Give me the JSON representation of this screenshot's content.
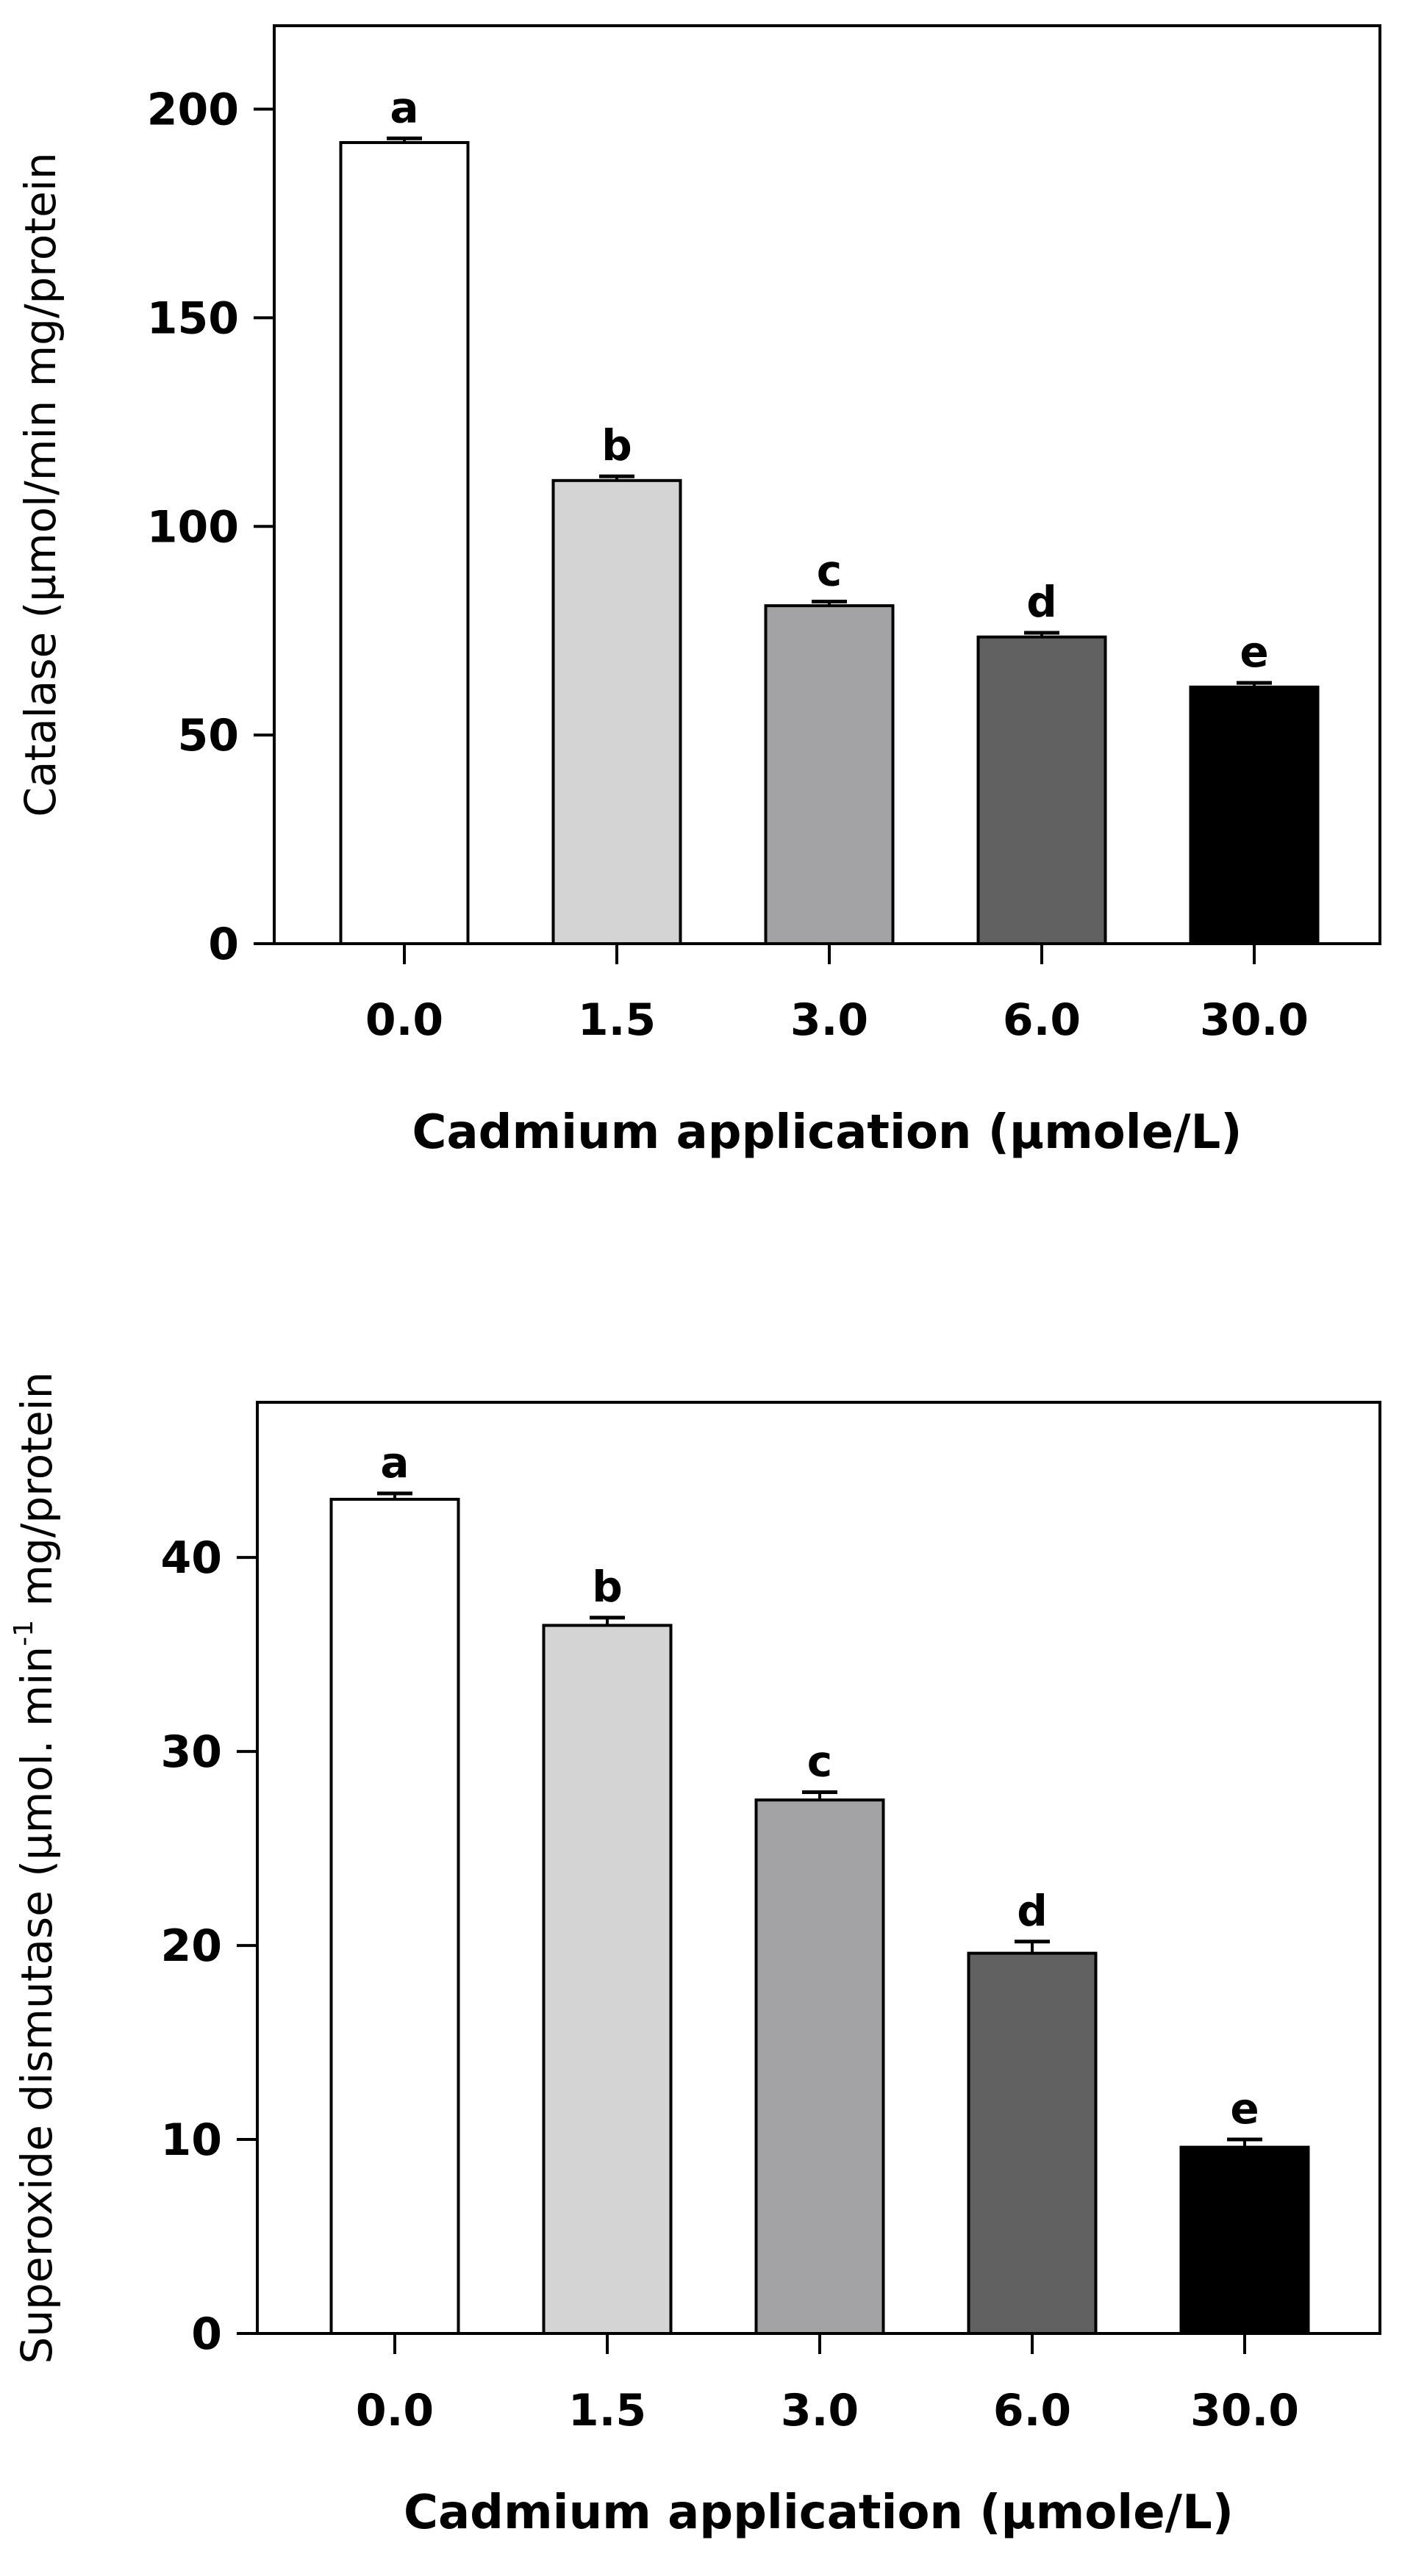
{
  "chart_data": [
    {
      "type": "bar",
      "categories": [
        "0.0",
        "1.5",
        "3.0",
        "6.0",
        "30.0"
      ],
      "values": [
        192,
        111,
        81,
        73.5,
        61.5
      ],
      "errors": [
        1,
        1,
        1,
        1,
        1
      ],
      "significance": [
        "a",
        "b",
        "c",
        "d",
        "e"
      ],
      "colors": [
        "#ffffff",
        "#d4d4d4",
        "#a3a3a6",
        "#616161",
        "#000000"
      ],
      "xlabel": "Cadmium application (µmole/L)",
      "ylabel": "Catalase (µmol/min mg/protein",
      "ylim": [
        0,
        220
      ],
      "yticks": [
        0,
        50,
        100,
        150,
        200
      ],
      "grid": false
    },
    {
      "type": "bar",
      "categories": [
        "0.0",
        "1.5",
        "3.0",
        "6.0",
        "30.0"
      ],
      "values": [
        43,
        36.5,
        27.5,
        19.6,
        9.6
      ],
      "errors": [
        0.3,
        0.4,
        0.4,
        0.6,
        0.4
      ],
      "significance": [
        "a",
        "b",
        "c",
        "d",
        "e"
      ],
      "colors": [
        "#ffffff",
        "#d4d4d4",
        "#a3a3a6",
        "#616161",
        "#000000"
      ],
      "xlabel": "Cadmium application (µmole/L)",
      "ylabel_parts": [
        "Superoxide dismutase (µmol. min",
        "-1",
        " mg/protein"
      ],
      "ylim": [
        0,
        48
      ],
      "yticks": [
        0,
        10,
        20,
        30,
        40
      ],
      "grid": false
    }
  ]
}
